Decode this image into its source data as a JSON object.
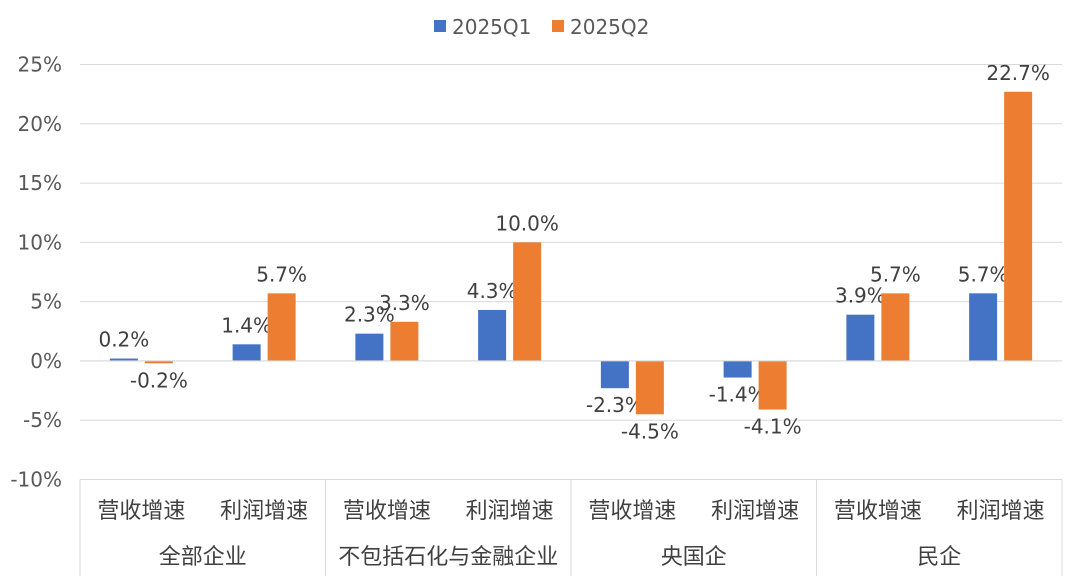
{
  "chart_data": {
    "type": "bar",
    "legend": {
      "position": "top"
    },
    "grid": true,
    "ylim": [
      -0.1,
      0.25
    ],
    "yticks": [
      -0.1,
      -0.05,
      0,
      0.05,
      0.1,
      0.15,
      0.2,
      0.25
    ],
    "ytick_labels": [
      "-10%",
      "-5%",
      "0%",
      "5%",
      "10%",
      "15%",
      "20%",
      "25%"
    ],
    "groups": [
      {
        "label": "全部企业",
        "categories": [
          "营收增速",
          "利润增速"
        ]
      },
      {
        "label": "不包括石化与金融企业",
        "categories": [
          "营收增速",
          "利润增速"
        ]
      },
      {
        "label": "央国企",
        "categories": [
          "营收增速",
          "利润增速"
        ]
      },
      {
        "label": "民企",
        "categories": [
          "营收增速",
          "利润增速"
        ]
      }
    ],
    "series": [
      {
        "name": "2025Q1",
        "color": "#4472C4",
        "values": [
          0.002,
          0.014,
          0.023,
          0.043,
          -0.023,
          -0.014,
          0.039,
          0.057
        ],
        "labels": [
          "0.2%",
          "1.4%",
          "2.3%",
          "4.3%",
          "-2.3%",
          "-1.4%",
          "3.9%",
          "5.7%"
        ]
      },
      {
        "name": "2025Q2",
        "color": "#ED7D31",
        "values": [
          -0.002,
          0.057,
          0.033,
          0.1,
          -0.045,
          -0.041,
          0.057,
          0.227
        ],
        "labels": [
          "-0.2%",
          "5.7%",
          "3.3%",
          "10.0%",
          "-4.5%",
          "-4.1%",
          "5.7%",
          "22.7%"
        ]
      }
    ]
  }
}
